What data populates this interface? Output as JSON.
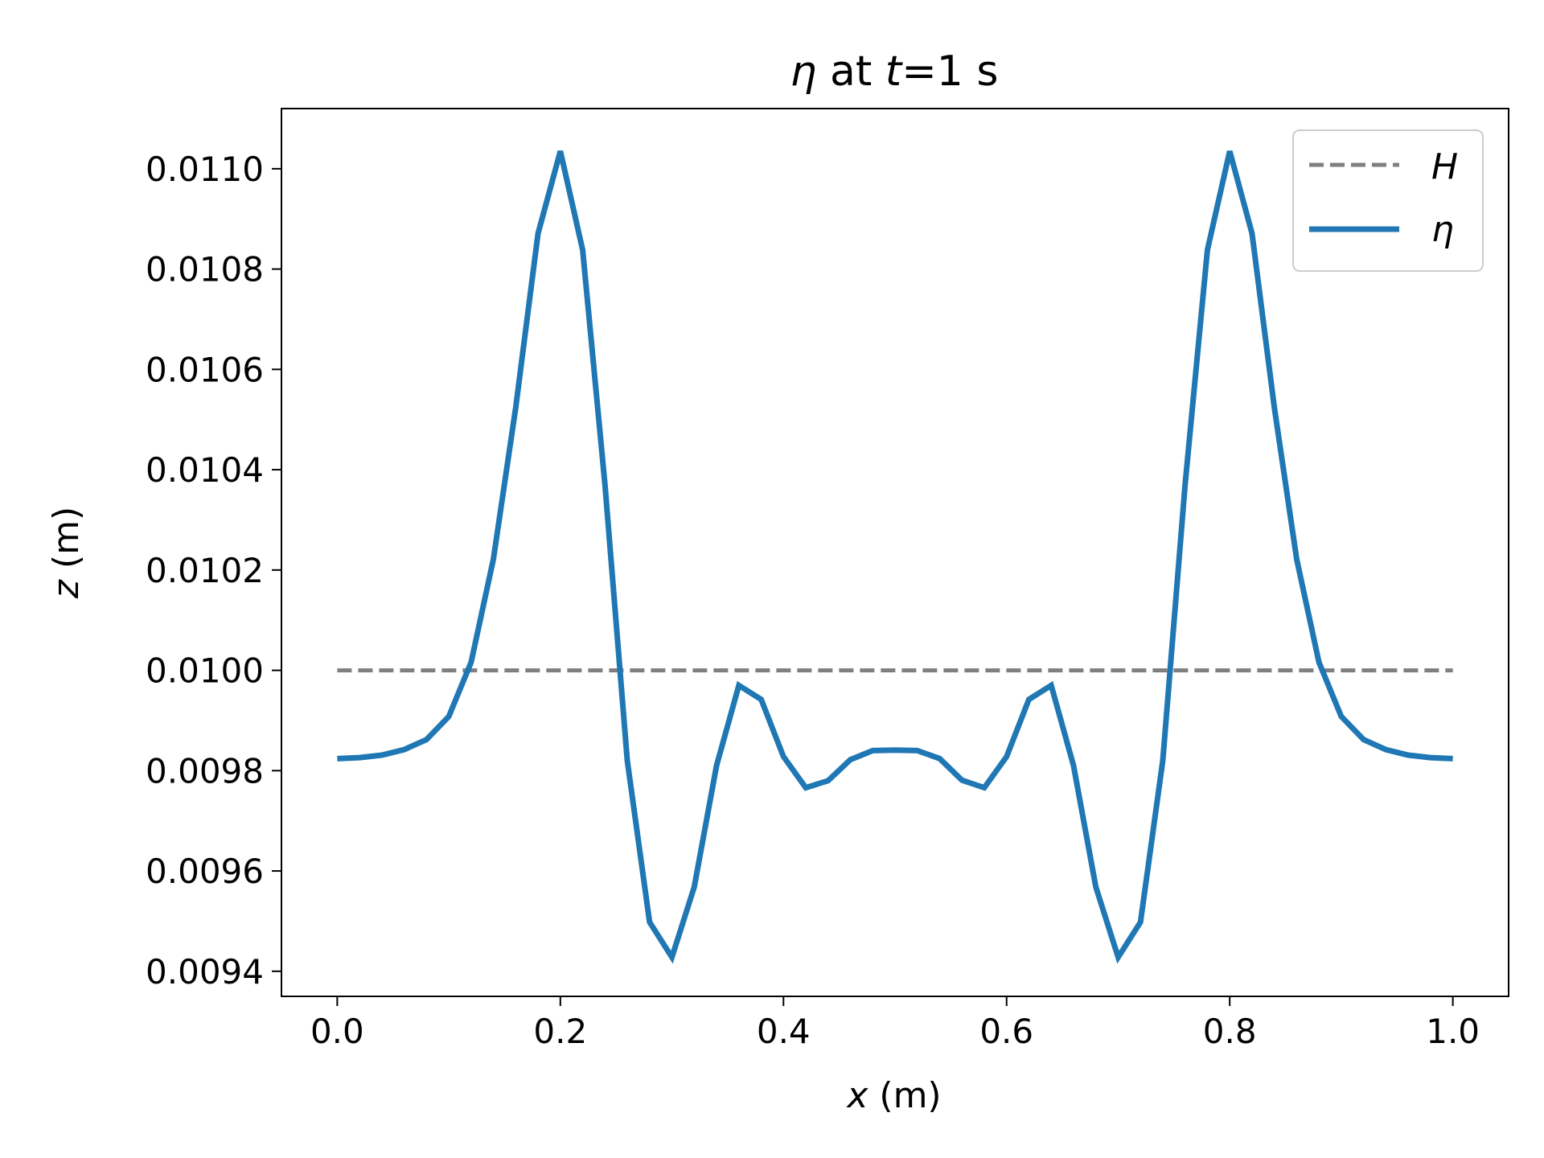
{
  "chart_data": {
    "type": "line",
    "title": {
      "symbol": "η",
      "mid": " at ",
      "var": "t",
      "rest": "=1 s"
    },
    "xlabel": {
      "var": "x",
      "unit": " (m)"
    },
    "ylabel": {
      "var": "z",
      "unit": " (m)"
    },
    "xlim": [
      -0.05,
      1.05
    ],
    "ylim": [
      0.00935,
      0.01112
    ],
    "xticks": [
      0.0,
      0.2,
      0.4,
      0.6,
      0.8,
      1.0
    ],
    "xtick_labels": [
      "0.0",
      "0.2",
      "0.4",
      "0.6",
      "0.8",
      "1.0"
    ],
    "yticks": [
      0.0094,
      0.0096,
      0.0098,
      0.01,
      0.0102,
      0.0104,
      0.0106,
      0.0108,
      0.011
    ],
    "ytick_labels": [
      "0.0094",
      "0.0096",
      "0.0098",
      "0.0100",
      "0.0102",
      "0.0104",
      "0.0106",
      "0.0108",
      "0.0110"
    ],
    "grid": false,
    "legend_position": "top-right",
    "series": [
      {
        "name": "H",
        "color": "#7f7f7f",
        "style": "dashed",
        "x": [
          0.0,
          1.0
        ],
        "y": [
          0.01,
          0.01
        ]
      },
      {
        "name": "η",
        "color": "#1f77b4",
        "style": "solid",
        "x": [
          0.0,
          0.02,
          0.04,
          0.06,
          0.08,
          0.1,
          0.12,
          0.14,
          0.16,
          0.18,
          0.2,
          0.22,
          0.24,
          0.26,
          0.28,
          0.3,
          0.32,
          0.34,
          0.36,
          0.38,
          0.4,
          0.42,
          0.44,
          0.46,
          0.48,
          0.5,
          0.52,
          0.54,
          0.56,
          0.58,
          0.6,
          0.62,
          0.64,
          0.66,
          0.68,
          0.7,
          0.72,
          0.74,
          0.76,
          0.78,
          0.8,
          0.82,
          0.84,
          0.86,
          0.88,
          0.9,
          0.92,
          0.94,
          0.96,
          0.98,
          1.0
        ],
        "y": [
          0.009824,
          0.009826,
          0.009831,
          0.009842,
          0.009862,
          0.009908,
          0.010016,
          0.010222,
          0.010524,
          0.010871,
          0.011035,
          0.010838,
          0.01037,
          0.00982,
          0.009498,
          0.009428,
          0.009568,
          0.00981,
          0.00997,
          0.009942,
          0.009828,
          0.009766,
          0.00978,
          0.009822,
          0.00984,
          0.009841,
          0.00984,
          0.009824,
          0.009781,
          0.009766,
          0.009828,
          0.009942,
          0.00997,
          0.00981,
          0.009568,
          0.009428,
          0.009498,
          0.00982,
          0.01037,
          0.010838,
          0.011035,
          0.010871,
          0.010524,
          0.010222,
          0.010016,
          0.009908,
          0.009862,
          0.009842,
          0.009831,
          0.009826,
          0.009824
        ]
      }
    ]
  }
}
